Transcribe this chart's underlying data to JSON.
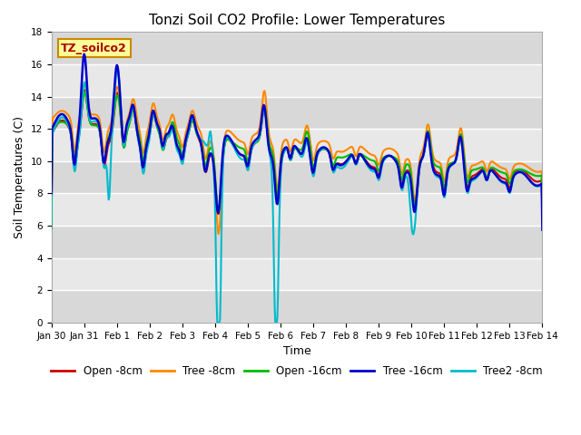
{
  "title": "Tonzi Soil CO2 Profile: Lower Temperatures",
  "xlabel": "Time",
  "ylabel": "Soil Temperatures (C)",
  "xlim": [
    0,
    15
  ],
  "ylim": [
    0,
    18
  ],
  "yticks": [
    0,
    2,
    4,
    6,
    8,
    10,
    12,
    14,
    16,
    18
  ],
  "xtick_labels": [
    "Jan 30",
    "Jan 31",
    "Feb 1",
    "Feb 2",
    "Feb 3",
    "Feb 4",
    "Feb 5",
    "Feb 6",
    "Feb 7",
    "Feb 8",
    "Feb 9",
    "Feb 10",
    "Feb 11",
    "Feb 12",
    "Feb 13",
    "Feb 14"
  ],
  "background_color": "#ffffff",
  "plot_bg_color": "#e8e8e8",
  "plot_bg_stripe_light": "#d8d8d8",
  "plot_bg_stripe_dark": "#c8c8c8",
  "grid_color": "#ffffff",
  "legend_label": "TZ_soilco2",
  "legend_box_color": "#ffff99",
  "legend_box_edge": "#cc8800",
  "series": {
    "open_8cm": {
      "color": "#cc0000",
      "label": "Open -8cm",
      "linewidth": 1.5
    },
    "tree_8cm": {
      "color": "#ff8800",
      "label": "Tree -8cm",
      "linewidth": 1.5
    },
    "open_16cm": {
      "color": "#00bb00",
      "label": "Open -16cm",
      "linewidth": 1.5
    },
    "tree_16cm": {
      "color": "#0000cc",
      "label": "Tree -16cm",
      "linewidth": 1.8
    },
    "tree2_8cm": {
      "color": "#00bbcc",
      "label": "Tree2 -8cm",
      "linewidth": 1.5
    }
  }
}
